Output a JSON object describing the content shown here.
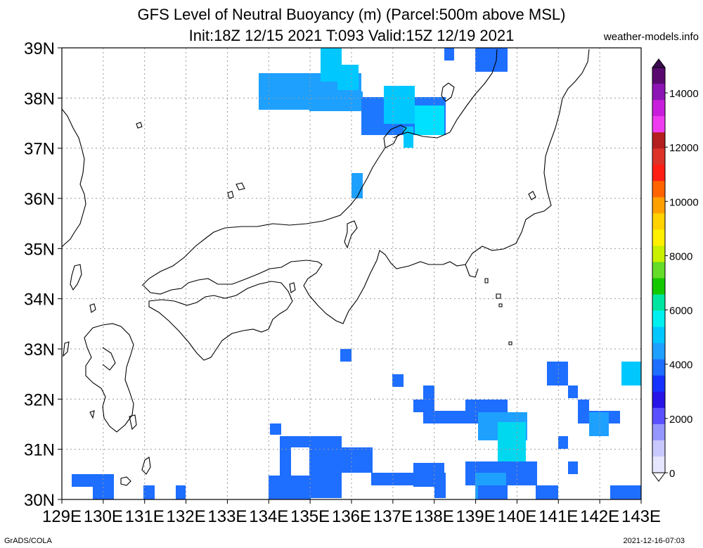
{
  "header": {
    "title": "GFS Level of Neutral Buoyancy (m) (Parcel:500m above MSL)",
    "subtitle": "Init:18Z 12/15 2021 T:093 Valid:15Z 12/19 2021",
    "site": "weather-models.info"
  },
  "footer": {
    "left": "GrADS/COLA",
    "right": "2021-12-16-07:03"
  },
  "map": {
    "lat_labels": [
      "39N",
      "38N",
      "37N",
      "36N",
      "35N",
      "34N",
      "33N",
      "32N",
      "31N",
      "30N"
    ],
    "lon_labels": [
      "129E",
      "130E",
      "131E",
      "132E",
      "133E",
      "134E",
      "135E",
      "136E",
      "137E",
      "138E",
      "139E",
      "140E",
      "141E",
      "142E",
      "143E"
    ],
    "lon_range": [
      129,
      143
    ],
    "lat_range": [
      30,
      39
    ],
    "grid": "dotted"
  },
  "colorbar": {
    "labels": [
      "14000",
      "12000",
      "10000",
      "8000",
      "6000",
      "4000",
      "2000",
      "0"
    ],
    "colors": [
      "#5a0a6e",
      "#8c14b4",
      "#c81edc",
      "#f03cf0",
      "#b41e1e",
      "#dc3228",
      "#ff1e14",
      "#ff6400",
      "#ffa000",
      "#ffd200",
      "#fff000",
      "#c8f000",
      "#64dc28",
      "#14c800",
      "#00e6a0",
      "#00f0f0",
      "#00c8ff",
      "#1ea0ff",
      "#1e6eff",
      "#1432ff",
      "#2814e6",
      "#5a50ff",
      "#9696ff",
      "#c8c8ff",
      "#e6e6ff"
    ]
  }
}
